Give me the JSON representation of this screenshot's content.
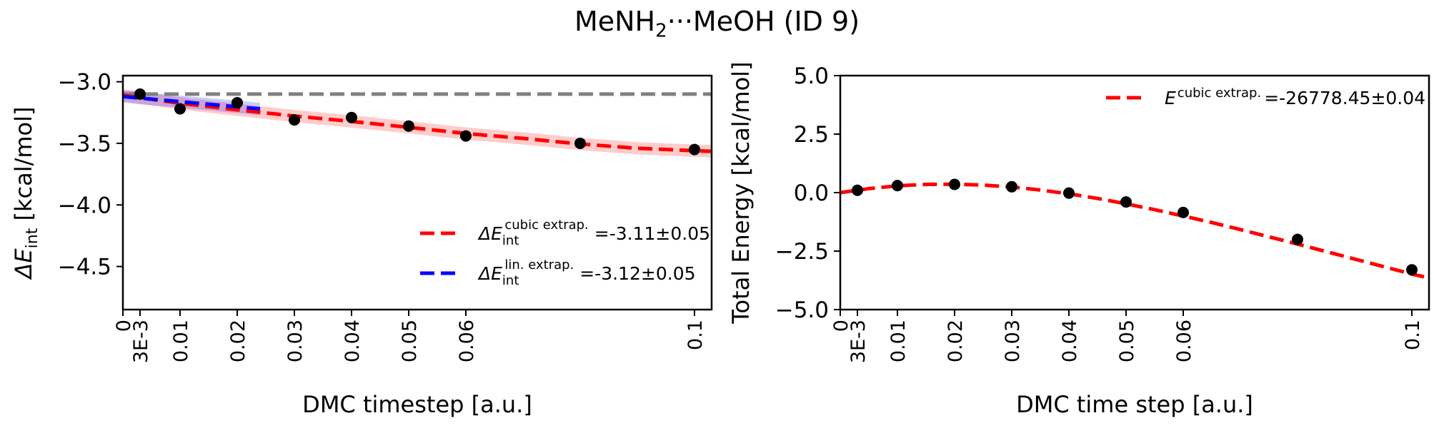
{
  "figure": {
    "title_pre": "MeNH",
    "title_sub": "2",
    "title_post": "···MeOH (ID 9)"
  },
  "chart_data": [
    {
      "type": "scatter",
      "panel": "left",
      "xlabel": "DMC timestep [a.u.]",
      "ylabel_main": "ΔE",
      "ylabel_sub": "int",
      "ylabel_unit": " [kcal/mol]",
      "xlim": [
        0,
        0.103
      ],
      "ylim": [
        -4.85,
        -2.95
      ],
      "xticks": [
        {
          "v": 0,
          "label": "0"
        },
        {
          "v": 0.003,
          "label": "3E-3"
        },
        {
          "v": 0.01,
          "label": "0.01"
        },
        {
          "v": 0.02,
          "label": "0.02"
        },
        {
          "v": 0.03,
          "label": "0.03"
        },
        {
          "v": 0.04,
          "label": "0.04"
        },
        {
          "v": 0.05,
          "label": "0.05"
        },
        {
          "v": 0.06,
          "label": "0.06"
        },
        {
          "v": 0.1,
          "label": "0.1"
        }
      ],
      "yticks": [
        {
          "v": -3.0,
          "label": "−3.0"
        },
        {
          "v": -3.5,
          "label": "−3.5"
        },
        {
          "v": -4.0,
          "label": "−4.0"
        },
        {
          "v": -4.5,
          "label": "−4.5"
        }
      ],
      "points": {
        "x": [
          0.003,
          0.01,
          0.02,
          0.03,
          0.04,
          0.05,
          0.06,
          0.08,
          0.1
        ],
        "y": [
          -3.1,
          -3.22,
          -3.17,
          -3.31,
          -3.29,
          -3.36,
          -3.44,
          -3.5,
          -3.55
        ]
      },
      "reference_line": {
        "y": -3.1,
        "color": "#808080"
      },
      "cubic_fit": {
        "x": [
          0,
          0.01,
          0.02,
          0.03,
          0.04,
          0.05,
          0.06,
          0.07,
          0.08,
          0.09,
          0.1,
          0.103
        ],
        "y": [
          -3.11,
          -3.175,
          -3.228,
          -3.278,
          -3.322,
          -3.37,
          -3.42,
          -3.46,
          -3.505,
          -3.54,
          -3.56,
          -3.565
        ],
        "band": 0.05,
        "color": "#ff0000"
      },
      "linear_fit": {
        "x": [
          0,
          0.024
        ],
        "y": [
          -3.12,
          -3.22
        ],
        "band": 0.05,
        "color": "#0000ff"
      },
      "legend": [
        {
          "main": "ΔE",
          "sub": "int",
          "sup": "cubic extrap.",
          "value": "=-3.11±0.05",
          "color": "#ff0000"
        },
        {
          "main": "ΔE",
          "sub": "int",
          "sup": "lin. extrap.",
          "value": "=-3.12±0.05",
          "color": "#0000ff"
        }
      ],
      "legend_position": "lower-right",
      "grid": false
    },
    {
      "type": "scatter",
      "panel": "right",
      "xlabel": "DMC time step [a.u.]",
      "ylabel": "Total Energy [kcal/mol]",
      "xlim": [
        0,
        0.103
      ],
      "ylim": [
        -5.0,
        5.0
      ],
      "xticks": [
        {
          "v": 0,
          "label": "0"
        },
        {
          "v": 0.003,
          "label": "3E-3"
        },
        {
          "v": 0.01,
          "label": "0.01"
        },
        {
          "v": 0.02,
          "label": "0.02"
        },
        {
          "v": 0.03,
          "label": "0.03"
        },
        {
          "v": 0.04,
          "label": "0.04"
        },
        {
          "v": 0.05,
          "label": "0.05"
        },
        {
          "v": 0.06,
          "label": "0.06"
        },
        {
          "v": 0.1,
          "label": "0.1"
        }
      ],
      "yticks": [
        {
          "v": 5.0,
          "label": "5.0"
        },
        {
          "v": 2.5,
          "label": "2.5"
        },
        {
          "v": 0.0,
          "label": "0.0"
        },
        {
          "v": -2.5,
          "label": "−2.5"
        },
        {
          "v": -5.0,
          "label": "−5.0"
        }
      ],
      "points": {
        "x": [
          0.003,
          0.01,
          0.02,
          0.03,
          0.04,
          0.05,
          0.06,
          0.08,
          0.1
        ],
        "y": [
          0.1,
          0.3,
          0.35,
          0.25,
          -0.02,
          -0.4,
          -0.85,
          -2.0,
          -3.3
        ]
      },
      "cubic_fit": {
        "x": [
          0,
          0.005,
          0.01,
          0.015,
          0.02,
          0.025,
          0.03,
          0.035,
          0.04,
          0.045,
          0.05,
          0.055,
          0.06,
          0.065,
          0.07,
          0.075,
          0.08,
          0.085,
          0.09,
          0.095,
          0.1,
          0.103
        ],
        "y": [
          0.0,
          0.17,
          0.29,
          0.35,
          0.36,
          0.32,
          0.24,
          0.11,
          -0.05,
          -0.25,
          -0.48,
          -0.73,
          -1.0,
          -1.28,
          -1.58,
          -1.89,
          -2.2,
          -2.52,
          -2.84,
          -3.16,
          -3.48,
          -3.65
        ],
        "color": "#ff0000"
      },
      "legend": [
        {
          "main": "E",
          "sup": "cubic extrap.",
          "value": "=-26778.45±0.04",
          "color": "#ff0000"
        }
      ],
      "legend_position": "top-right",
      "grid": false
    }
  ]
}
